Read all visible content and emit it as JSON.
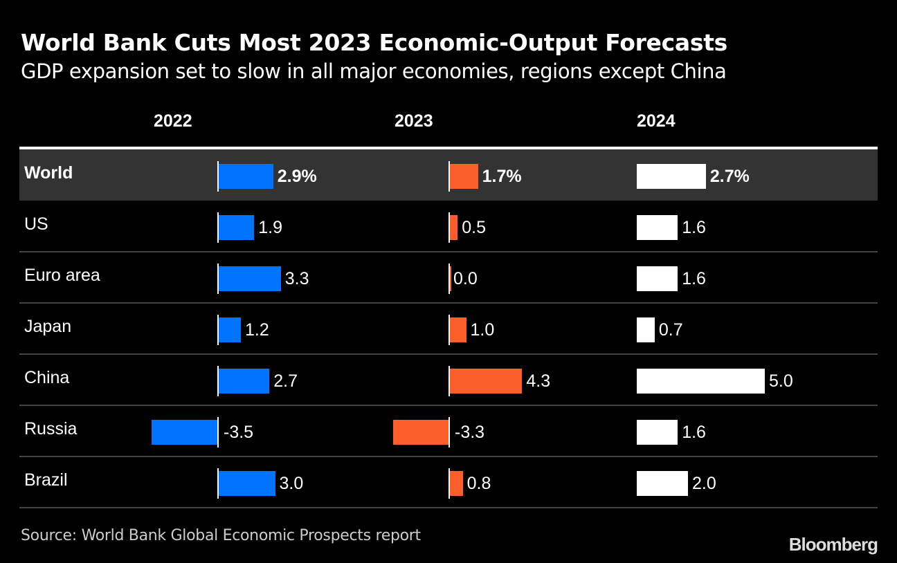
{
  "chart_data": {
    "type": "bar",
    "orientation": "horizontal",
    "title": "World Bank Cuts Most 2023 Economic-Output Forecasts",
    "subtitle": "GDP expansion set to slow in all major economies, regions except China",
    "unit": "%",
    "categories": [
      "World",
      "US",
      "Euro area",
      "Japan",
      "China",
      "Russia",
      "Brazil"
    ],
    "series": [
      {
        "name": "2022",
        "color": "#0073ff",
        "values": [
          2.9,
          1.9,
          3.3,
          1.2,
          2.7,
          -3.5,
          3.0
        ],
        "labels": [
          "2.9%",
          "1.9",
          "3.3",
          "1.2",
          "2.7",
          "-3.5",
          "3.0"
        ]
      },
      {
        "name": "2023",
        "color": "#fd5f2c",
        "values": [
          1.7,
          0.5,
          0.0,
          1.0,
          4.3,
          -3.3,
          0.8
        ],
        "labels": [
          "1.7%",
          "0.5",
          "0.0",
          "1.0",
          "4.3",
          "-3.3",
          "0.8"
        ]
      },
      {
        "name": "2024",
        "color": "#ffffff",
        "values": [
          2.7,
          1.6,
          1.6,
          0.7,
          5.0,
          1.6,
          2.0
        ],
        "labels": [
          "2.7%",
          "1.6",
          "1.6",
          "0.7",
          "5.0",
          "1.6",
          "2.0"
        ]
      }
    ],
    "highlight_row": "World",
    "source": "Source: World Bank Global Economic Prospects report",
    "brand": "Bloomberg"
  }
}
